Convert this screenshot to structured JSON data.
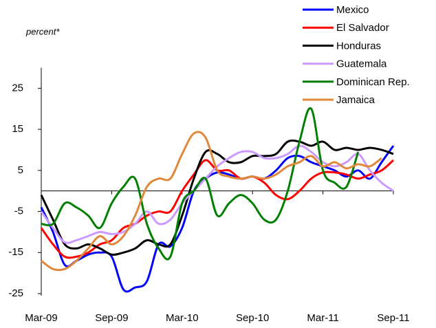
{
  "chart_data": {
    "type": "line",
    "y_label": "percent*",
    "categories": [
      "Mar-09",
      null,
      null,
      null,
      null,
      null,
      "Sep-09",
      null,
      null,
      null,
      null,
      null,
      "Mar-10",
      null,
      null,
      null,
      null,
      null,
      "Sep-10",
      null,
      null,
      null,
      null,
      null,
      "Mar-11",
      null,
      null,
      null,
      null,
      null,
      "Sep-11"
    ],
    "ylim": [
      -25,
      30
    ],
    "yticks": [
      -25,
      -15,
      -5,
      5,
      15,
      25
    ],
    "legend": "top-right",
    "series": [
      {
        "name": "Mexico",
        "color": "#0000ff",
        "values": [
          -4,
          -10,
          -18,
          -17,
          -15.5,
          -15,
          -16,
          -24,
          -23.5,
          -22,
          -13,
          -13.5,
          -9,
          0,
          3,
          4.5,
          4,
          3,
          3.5,
          3,
          5,
          8,
          8.5,
          7,
          6,
          5,
          3.5,
          5,
          3,
          7,
          11
        ]
      },
      {
        "name": "El Salvador",
        "color": "#ff0000",
        "values": [
          -9,
          -13,
          -16,
          -16,
          -15,
          -13,
          -12,
          -9,
          -8,
          -6,
          -5,
          -5,
          0,
          4,
          7.5,
          5,
          5,
          3,
          3.5,
          2,
          -1,
          -2,
          0,
          3,
          4.5,
          4.5,
          4,
          3,
          4,
          5,
          7.5
        ]
      },
      {
        "name": "Honduras",
        "color": "#000000",
        "values": [
          -1,
          -7,
          -13,
          -14,
          -13,
          -14,
          -15.5,
          -15,
          -14,
          -12,
          -13,
          -13,
          -6,
          3,
          9.5,
          9,
          7,
          7,
          8.5,
          8.5,
          9,
          12,
          12,
          11,
          12,
          10,
          10.5,
          10,
          10.5,
          10,
          9
        ]
      },
      {
        "name": "Guatemala",
        "color": "#cc99ff",
        "values": [
          -5,
          -9,
          -12.5,
          -12,
          -11,
          -10,
          -10.5,
          -10,
          -8,
          -5,
          -8,
          -7,
          -3,
          0,
          3,
          6,
          8,
          9.5,
          9.5,
          8,
          8,
          9,
          11,
          9.5,
          7,
          6,
          7,
          9,
          5,
          2,
          0
        ]
      },
      {
        "name": "Dominican Rep.",
        "color": "#008000",
        "values": [
          -8,
          -8,
          -3,
          -4,
          -6,
          -9,
          -3,
          1,
          3,
          -8,
          -14,
          -16,
          -3,
          0,
          3,
          -6,
          -3,
          -1,
          -3,
          -7,
          -7,
          0,
          12,
          20,
          5,
          2,
          1,
          9.5,
          null,
          null,
          null
        ]
      },
      {
        "name": "Jamaica",
        "color": "#e0873a",
        "values": [
          -17,
          -19,
          -19,
          -17,
          -14,
          -11,
          -13,
          -11,
          -6,
          1,
          3,
          3,
          9,
          14,
          13,
          5,
          3.5,
          3,
          3.5,
          3,
          4,
          6,
          7,
          8.5,
          6,
          7,
          5.5,
          6.5,
          6,
          8,
          null
        ]
      }
    ]
  }
}
